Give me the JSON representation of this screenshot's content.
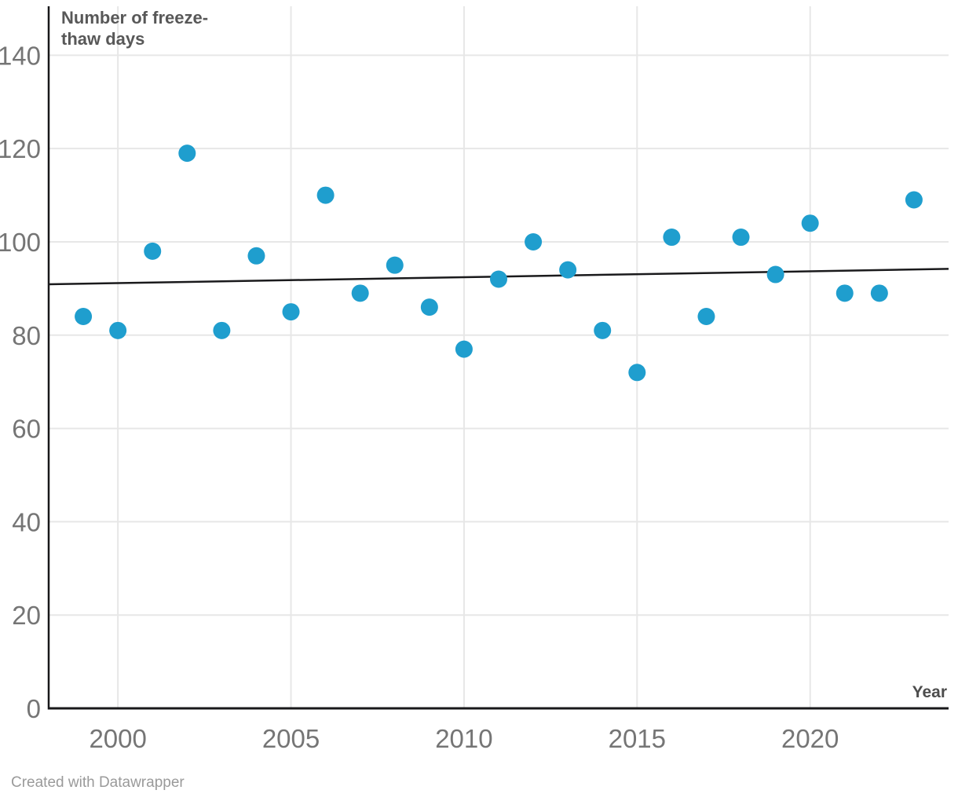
{
  "footer": {
    "text": "Created with Datawrapper"
  },
  "chart_data": {
    "type": "scatter",
    "title": "Number of freeze-thaw days",
    "title_lines": [
      "Number of freeze-",
      "thaw days"
    ],
    "xlabel": "Year",
    "ylabel": "Number of freeze-thaw days",
    "x_ticks": [
      2000,
      2005,
      2010,
      2015,
      2020
    ],
    "y_ticks": [
      0,
      20,
      40,
      60,
      80,
      100,
      120,
      140
    ],
    "x_range": [
      1998,
      2024
    ],
    "y_range": [
      0,
      150.5
    ],
    "grid": true,
    "legend": "none",
    "points": [
      {
        "year": 1999,
        "value": 84
      },
      {
        "year": 2000,
        "value": 81
      },
      {
        "year": 2001,
        "value": 98
      },
      {
        "year": 2002,
        "value": 119
      },
      {
        "year": 2003,
        "value": 81
      },
      {
        "year": 2004,
        "value": 97
      },
      {
        "year": 2005,
        "value": 85
      },
      {
        "year": 2006,
        "value": 110
      },
      {
        "year": 2007,
        "value": 89
      },
      {
        "year": 2008,
        "value": 95
      },
      {
        "year": 2009,
        "value": 86
      },
      {
        "year": 2010,
        "value": 77
      },
      {
        "year": 2011,
        "value": 92
      },
      {
        "year": 2012,
        "value": 100
      },
      {
        "year": 2013,
        "value": 94
      },
      {
        "year": 2014,
        "value": 81
      },
      {
        "year": 2015,
        "value": 72
      },
      {
        "year": 2016,
        "value": 101
      },
      {
        "year": 2017,
        "value": 84
      },
      {
        "year": 2018,
        "value": 101
      },
      {
        "year": 2019,
        "value": 93
      },
      {
        "year": 2020,
        "value": 104
      },
      {
        "year": 2021,
        "value": 89
      },
      {
        "year": 2022,
        "value": 89
      },
      {
        "year": 2023,
        "value": 109
      }
    ],
    "trend_line": {
      "x1": 1998,
      "y1": 90.9,
      "x2": 2024,
      "y2": 94.2
    },
    "colors": {
      "dot": "#1f9ece",
      "trend": "#1a1a1c",
      "grid": "#e7e7e7",
      "axis": "#18181a",
      "tick_text": "#757575",
      "title_text": "#585858",
      "axis_label_text": "#4d4d4d",
      "footer_text": "#9a9a9a"
    }
  }
}
